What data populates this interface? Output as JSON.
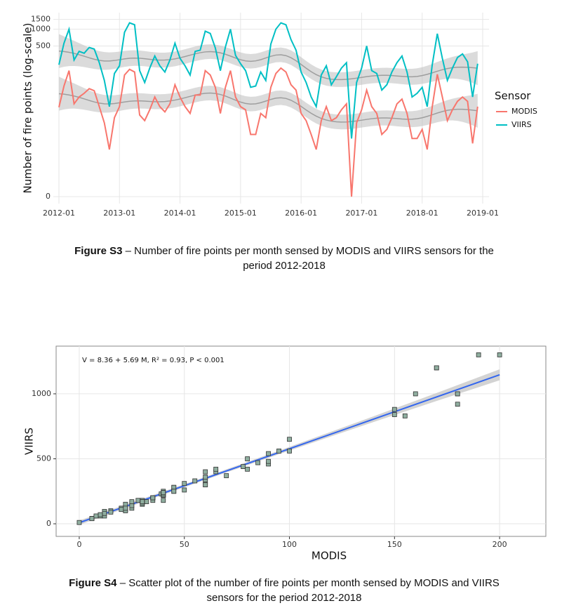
{
  "chart_data": [
    {
      "type": "line",
      "y_label": "Number of fire points (log-scale)",
      "x": [
        "2012-01",
        "2012-02",
        "2012-03",
        "2012-04",
        "2012-05",
        "2012-06",
        "2012-07",
        "2012-08",
        "2012-09",
        "2012-10",
        "2012-11",
        "2012-12",
        "2013-01",
        "2013-02",
        "2013-03",
        "2013-04",
        "2013-05",
        "2013-06",
        "2013-07",
        "2013-08",
        "2013-09",
        "2013-10",
        "2013-11",
        "2013-12",
        "2014-01",
        "2014-02",
        "2014-03",
        "2014-04",
        "2014-05",
        "2014-06",
        "2014-07",
        "2014-08",
        "2014-09",
        "2014-10",
        "2014-11",
        "2014-12",
        "2015-01",
        "2015-02",
        "2015-03",
        "2015-04",
        "2015-05",
        "2015-06",
        "2015-07",
        "2015-08",
        "2015-09",
        "2015-10",
        "2015-11",
        "2015-12",
        "2016-01",
        "2016-02",
        "2016-03",
        "2016-04",
        "2016-05",
        "2016-06",
        "2016-07",
        "2016-08",
        "2016-09",
        "2016-10",
        "2016-11",
        "2016-12",
        "2017-01",
        "2017-02",
        "2017-03",
        "2017-04",
        "2017-05",
        "2017-06",
        "2017-07",
        "2017-08",
        "2017-09",
        "2017-10",
        "2017-11",
        "2017-12",
        "2018-01",
        "2018-02",
        "2018-03",
        "2018-04",
        "2018-05",
        "2018-06",
        "2018-07",
        "2018-08",
        "2018-09",
        "2018-10",
        "2018-11",
        "2018-12"
      ],
      "series": [
        {
          "name": "MODIS",
          "color": "#F8766D",
          "values": [
            39,
            95,
            180,
            45,
            60,
            70,
            85,
            78,
            40,
            20,
            6,
            25,
            40,
            150,
            190,
            170,
            28,
            22,
            35,
            60,
            40,
            32,
            45,
            100,
            60,
            40,
            30,
            65,
            65,
            180,
            150,
            90,
            30,
            90,
            180,
            60,
            40,
            35,
            12,
            12,
            30,
            25,
            90,
            160,
            200,
            170,
            100,
            80,
            30,
            22,
            12,
            6,
            22,
            40,
            22,
            25,
            35,
            45,
            0,
            20,
            35,
            80,
            40,
            30,
            12,
            15,
            25,
            45,
            55,
            30,
            10,
            10,
            15,
            6,
            40,
            155,
            60,
            22,
            35,
            50,
            60,
            50,
            8,
            40
          ]
        },
        {
          "name": "VIIRS",
          "color": "#00BFC4",
          "values": [
            230,
            560,
            1000,
            280,
            400,
            370,
            470,
            440,
            250,
            120,
            40,
            160,
            220,
            880,
            1300,
            1200,
            180,
            110,
            200,
            330,
            220,
            170,
            280,
            560,
            300,
            220,
            150,
            400,
            420,
            920,
            840,
            460,
            180,
            480,
            1000,
            340,
            240,
            180,
            90,
            95,
            170,
            120,
            540,
            1000,
            1300,
            1200,
            650,
            420,
            170,
            110,
            60,
            40,
            150,
            220,
            100,
            140,
            200,
            250,
            10,
            110,
            200,
            500,
            180,
            160,
            80,
            100,
            170,
            250,
            330,
            170,
            60,
            70,
            90,
            40,
            230,
            830,
            300,
            120,
            200,
            310,
            360,
            260,
            60,
            240
          ]
        }
      ],
      "xlim": [
        "2012-01",
        "2019-01"
      ],
      "xticks": [
        "2012-01",
        "2013-01",
        "2014-01",
        "2015-01",
        "2016-01",
        "2017-01",
        "2018-01",
        "2019-01"
      ],
      "ylim": [
        -0.25,
        1980
      ],
      "yticks": [
        0,
        500,
        1000,
        1500
      ],
      "yscale": "log1p",
      "grid": true,
      "legend": "right",
      "legend_title": "Sensor"
    },
    {
      "type": "scatter",
      "x_label": "MODIS",
      "y_label": "VIIRS",
      "annotation": "V = 8.36 + 5.69 M, R² = 0.93, P < 0.001",
      "x": [
        39,
        95,
        180,
        45,
        60,
        70,
        85,
        78,
        40,
        20,
        6,
        25,
        40,
        150,
        190,
        170,
        28,
        22,
        35,
        60,
        40,
        32,
        45,
        100,
        60,
        40,
        30,
        65,
        65,
        180,
        150,
        90,
        30,
        90,
        180,
        60,
        40,
        35,
        12,
        12,
        30,
        25,
        90,
        160,
        200,
        170,
        100,
        80,
        30,
        22,
        12,
        6,
        22,
        40,
        22,
        25,
        35,
        45,
        0,
        20,
        35,
        80,
        40,
        30,
        12,
        15,
        25,
        45,
        55,
        30,
        10,
        10,
        15,
        6,
        40,
        155,
        60,
        22,
        35,
        50,
        60,
        50,
        8,
        40
      ],
      "values": [
        230,
        560,
        1000,
        280,
        400,
        370,
        470,
        440,
        250,
        120,
        40,
        160,
        220,
        880,
        1300,
        1200,
        180,
        110,
        200,
        330,
        220,
        170,
        280,
        560,
        300,
        220,
        150,
        400,
        420,
        920,
        840,
        460,
        180,
        480,
        1000,
        340,
        240,
        180,
        90,
        95,
        170,
        120,
        540,
        1000,
        1300,
        1200,
        650,
        420,
        170,
        110,
        60,
        40,
        150,
        220,
        100,
        140,
        200,
        250,
        10,
        110,
        200,
        500,
        180,
        160,
        80,
        100,
        170,
        250,
        330,
        170,
        60,
        70,
        90,
        40,
        230,
        830,
        300,
        120,
        200,
        310,
        360,
        260,
        60,
        240
      ],
      "color": "#8fae9f",
      "fit": {
        "intercept": 8.36,
        "slope": 5.69,
        "color": "#3366ee"
      },
      "xlim": [
        -11,
        222
      ],
      "xticks": [
        0,
        50,
        100,
        150,
        200
      ],
      "ylim": [
        -97,
        1367
      ],
      "yticks": [
        0,
        500,
        1000
      ],
      "grid": true
    }
  ],
  "captions": [
    {
      "label": "Figure S3",
      "text": "– Number of fire points per month sensed by MODIS and VIIRS sensors for the period 2012-2018"
    },
    {
      "label": "Figure S4",
      "text": "– Scatter plot of the number of fire points per month sensed by MODIS and VIIRS sensors for the period 2012-2018"
    }
  ]
}
